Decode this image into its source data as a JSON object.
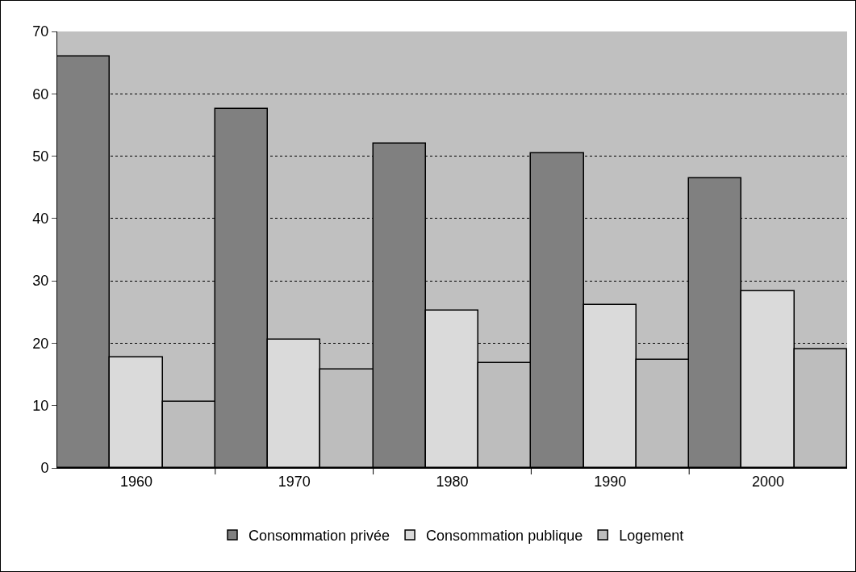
{
  "chart_data": {
    "type": "bar",
    "categories": [
      "1960",
      "1970",
      "1980",
      "1990",
      "2000"
    ],
    "series": [
      {
        "name": "Consommation privée",
        "color": "#808080",
        "values": [
          66,
          57.6,
          52,
          50.5,
          46.4
        ]
      },
      {
        "name": "Consommation publique",
        "color": "#dadada",
        "values": [
          17.7,
          20.6,
          25.2,
          26.1,
          28.4
        ]
      },
      {
        "name": "Logement",
        "color": "#bdbdbd",
        "values": [
          10.6,
          15.8,
          16.8,
          17.3,
          19
        ]
      }
    ],
    "ylim": [
      0,
      70
    ],
    "yticks": [
      0,
      10,
      20,
      30,
      40,
      50,
      60,
      70
    ],
    "grid": "y",
    "legend": "bottom"
  }
}
